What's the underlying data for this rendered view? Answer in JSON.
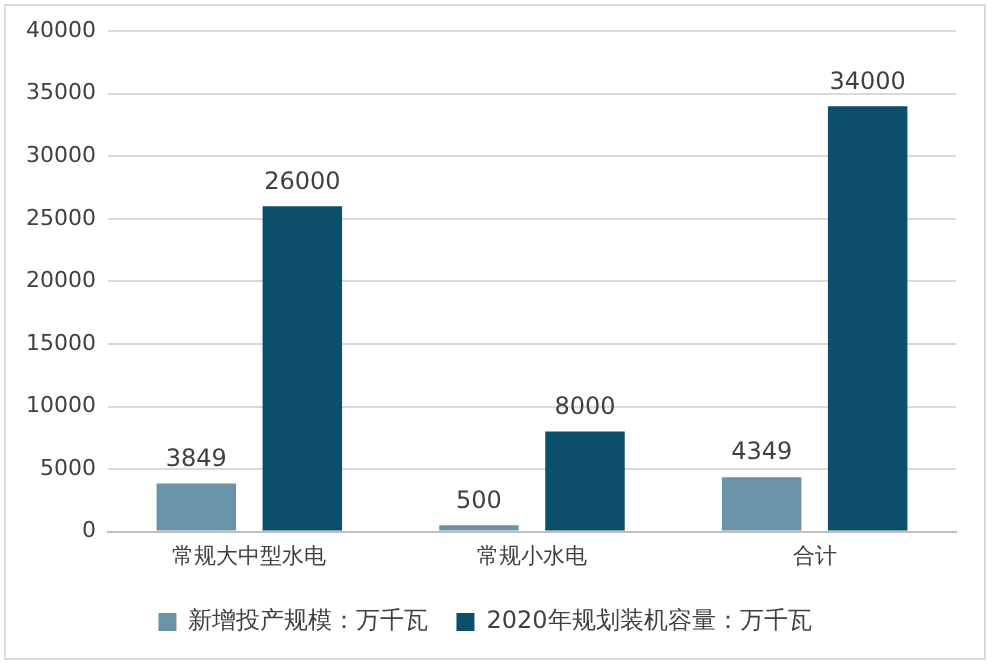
{
  "chart_data": {
    "type": "bar",
    "categories": [
      "常规大中型水电",
      "常规小水电",
      "合计"
    ],
    "series": [
      {
        "name": "新增投产规模：万千瓦",
        "color": "#6a93a8",
        "values": [
          3849,
          500,
          4349
        ]
      },
      {
        "name": "2020年规划装机容量：万千瓦",
        "color": "#0b4f6c",
        "values": [
          26000,
          8000,
          34000
        ]
      }
    ],
    "ylim": [
      0,
      40000
    ],
    "yticks": [
      0,
      5000,
      10000,
      15000,
      20000,
      25000,
      30000,
      35000,
      40000
    ],
    "grid": "y",
    "legend": "bottom",
    "data_labels": true
  }
}
